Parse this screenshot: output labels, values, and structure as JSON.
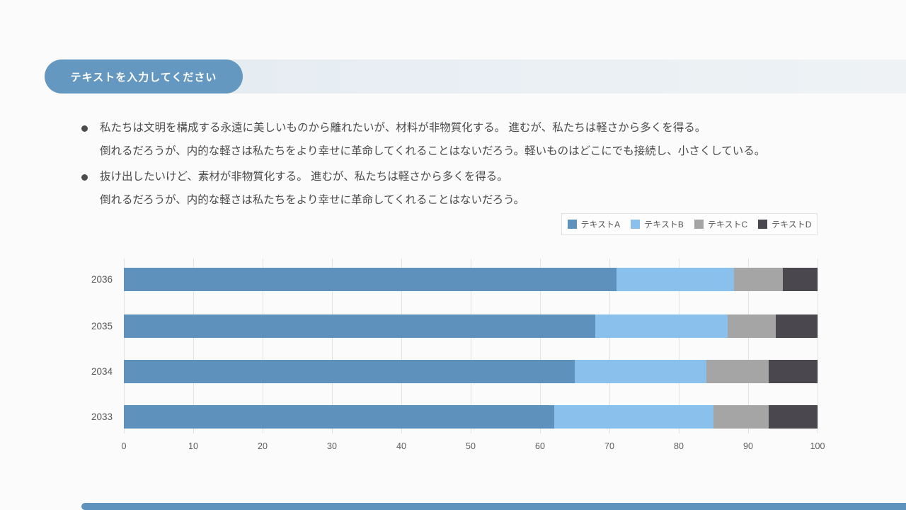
{
  "title": {
    "label": "テキストを入力してください"
  },
  "bullets": [
    {
      "lines": [
        "私たちは文明を構成する永遠に美しいものから離れたいが、材料が非物質化する。 進むが、私たちは軽さから多くを得る。",
        "倒れるだろうが、内的な軽さは私たちをより幸せに革命してくれることはないだろう。軽いものはどこにでも接続し、小さくしている。"
      ]
    },
    {
      "lines": [
        "抜け出したいけど、素材が非物質化する。 進むが、私たちは軽さから多くを得る。",
        "倒れるだろうが、内的な軽さは私たちをより幸せに革命してくれることはないだろう。"
      ]
    }
  ],
  "chart_data": {
    "type": "bar",
    "orientation": "horizontal",
    "stacked": true,
    "categories": [
      "2036",
      "2035",
      "2034",
      "2033"
    ],
    "series": [
      {
        "name": "テキストA",
        "color": "#5e92bd",
        "values": [
          71,
          68,
          65,
          62
        ]
      },
      {
        "name": "テキストB",
        "color": "#8ac1ec",
        "values": [
          17,
          19,
          19,
          23
        ]
      },
      {
        "name": "テキストC",
        "color": "#a5a5a5",
        "values": [
          7,
          7,
          9,
          8
        ]
      },
      {
        "name": "テキストD",
        "color": "#4a484e",
        "values": [
          5,
          6,
          7,
          7
        ]
      }
    ],
    "xlim": [
      0,
      100
    ],
    "xticks": [
      0,
      10,
      20,
      30,
      40,
      50,
      60,
      70,
      80,
      90,
      100
    ],
    "grid": true,
    "legend_position": "top-right",
    "title": "",
    "xlabel": "",
    "ylabel": ""
  },
  "colors": {
    "accent_blue": "#6598c0",
    "band_background": "#e7edf2",
    "footer_bar": "#5e93bd",
    "text": "#4b4b4b",
    "grid": "#e3e3e3"
  }
}
